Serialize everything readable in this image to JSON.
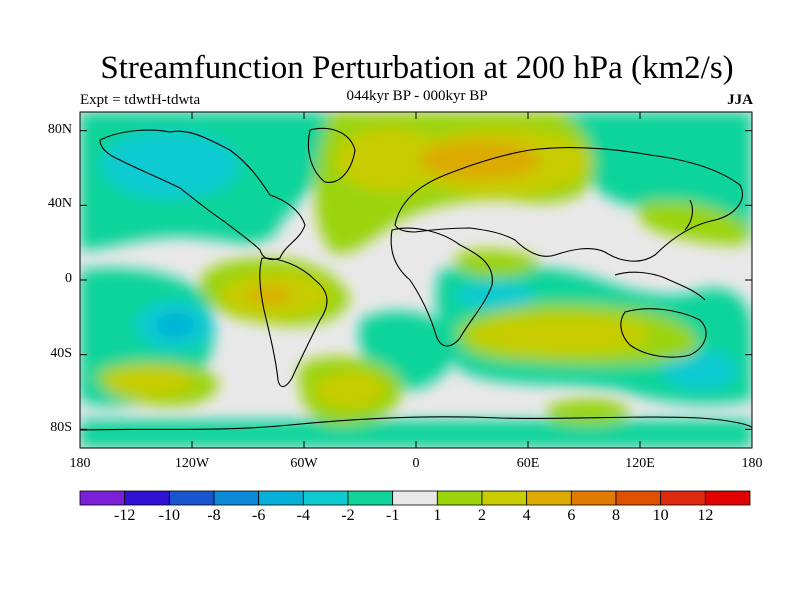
{
  "title": "Streamfunction Perturbation at 200 hPa (km2/s)",
  "period": "044kyr BP - 000kyr BP",
  "experiment": "Expt = tdwtH-tdwta",
  "season": "JJA",
  "lat_labels": [
    "80N",
    "40N",
    "0",
    "40S",
    "80S"
  ],
  "lon_labels": [
    "180",
    "120W",
    "60W",
    "0",
    "60E",
    "120E",
    "180"
  ],
  "colorbar": {
    "labels": [
      "-12",
      "-10",
      "-8",
      "-6",
      "-4",
      "-2",
      "-1",
      "1",
      "2",
      "4",
      "6",
      "8",
      "10",
      "12"
    ],
    "colors": [
      "#7b1fd8",
      "#3311d4",
      "#1a55d0",
      "#0b88d8",
      "#06b0d6",
      "#0fcbd0",
      "#10d49a",
      "#e8e8e8",
      "#9ad40a",
      "#c8cc00",
      "#dcaa00",
      "#e07a00",
      "#e05000",
      "#e02a10",
      "#e00000"
    ]
  },
  "field_colors": {
    "neutral": "#e8e8e8",
    "neg1": "#10d49a",
    "neg2": "#0fcbd0",
    "neg3": "#06b0d6",
    "pos1": "#9ad40a",
    "pos2": "#c8cc00",
    "pos3": "#dcaa00",
    "pos4": "#e07a00"
  }
}
